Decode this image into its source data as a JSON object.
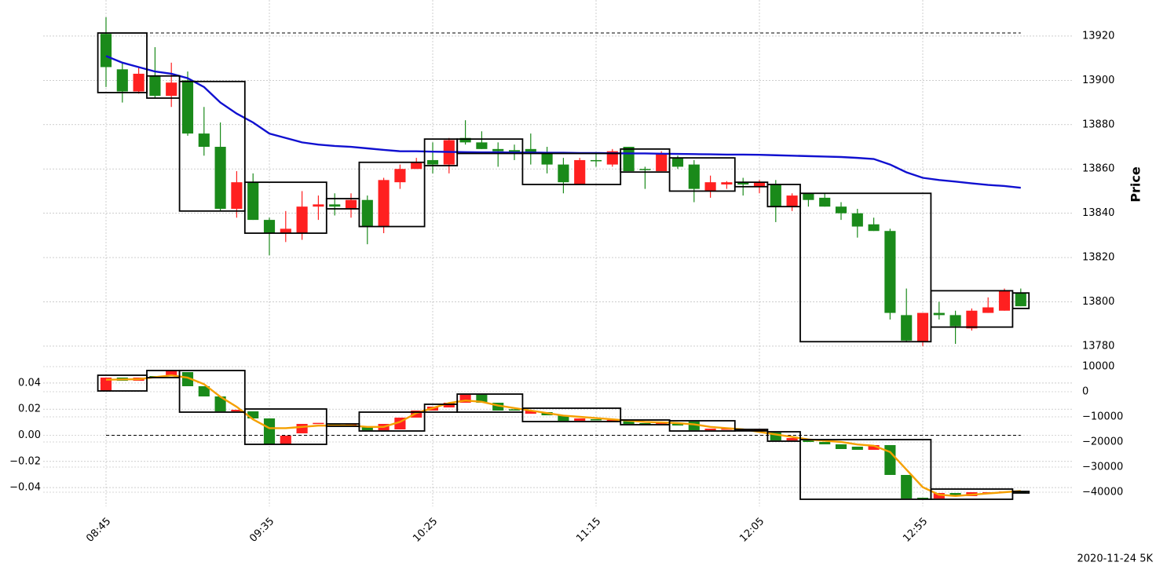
{
  "chart_data": [
    {
      "type": "candlestick",
      "ylabel": "Price",
      "categories": [
        "08:45",
        null,
        null,
        null,
        null,
        null,
        null,
        null,
        null,
        null,
        "09:35",
        null,
        null,
        null,
        null,
        null,
        null,
        null,
        null,
        null,
        "10:25",
        null,
        null,
        null,
        null,
        null,
        null,
        null,
        null,
        null,
        "11:15",
        null,
        null,
        null,
        null,
        null,
        null,
        null,
        null,
        null,
        "12:05",
        null,
        null,
        null,
        null,
        null,
        null,
        null,
        null,
        null,
        "12:55",
        null,
        null,
        null,
        null,
        null,
        null
      ],
      "open": [
        13921,
        13905,
        13895,
        13902,
        13893,
        13900,
        13876,
        13870,
        13842,
        13854,
        13837,
        13831,
        13831,
        13843,
        13844,
        13842,
        13846,
        13834,
        13854,
        13860,
        13864,
        13862,
        13874,
        13872,
        13869,
        13868.5,
        13869,
        13867,
        13862,
        13853,
        13864,
        13862,
        13870,
        13860,
        13859,
        13865,
        13862,
        13850,
        13853,
        13854,
        13852,
        13853,
        13843,
        13849,
        13847,
        13843,
        13840,
        13835,
        13832,
        13794,
        13782,
        13795,
        13794,
        13788,
        13795,
        13796,
        13804
      ],
      "high": [
        13928.5,
        13908,
        13906,
        13915,
        13908,
        13904,
        13888,
        13881,
        13859,
        13858,
        13838,
        13841,
        13850,
        13848,
        13849,
        13849,
        13848,
        13856,
        13862,
        13865,
        13872,
        13874,
        13882,
        13877,
        13872,
        13871,
        13876,
        13870,
        13865,
        13865,
        13867,
        13869,
        13870,
        13861,
        13868,
        13866,
        13864,
        13857,
        13854.5,
        13856,
        13855,
        13855,
        13849,
        13849,
        13849,
        13845,
        13842,
        13838,
        13833,
        13806,
        13795,
        13800,
        13796,
        13797,
        13802,
        13806,
        13806
      ],
      "low": [
        13897,
        13890,
        13894,
        13892,
        13888,
        13875,
        13866,
        13841,
        13838,
        13837,
        13821,
        13827,
        13828,
        13837,
        13839,
        13838,
        13826,
        13831,
        13851,
        13860,
        13858,
        13858,
        13871,
        13869,
        13861,
        13864,
        13862,
        13858,
        13849,
        13853,
        13861,
        13861,
        13859,
        13851,
        13859,
        13860,
        13845,
        13847,
        13851,
        13848,
        13849,
        13836,
        13841,
        13843,
        13843,
        13837,
        13829,
        13832,
        13792,
        13782,
        13780,
        13792,
        13781,
        13787,
        13795,
        13796,
        13798
      ],
      "close": [
        13906,
        13895,
        13903,
        13893,
        13899,
        13876,
        13870,
        13842,
        13854,
        13837,
        13831,
        13833,
        13843,
        13844,
        13843,
        13846,
        13834,
        13855,
        13860,
        13863,
        13862,
        13873,
        13872,
        13869,
        13868,
        13867,
        13867,
        13862,
        13854,
        13864,
        13863.5,
        13868,
        13859,
        13859.5,
        13867,
        13861,
        13851,
        13854,
        13854,
        13853,
        13854,
        13843,
        13848,
        13846,
        13843,
        13840,
        13834,
        13832,
        13795,
        13782.5,
        13795,
        13794,
        13789,
        13796,
        13797.5,
        13805,
        13798
      ],
      "up_color": "#ff2020",
      "down_color": "#1a8a1a",
      "ma": {
        "color": "#1010d0",
        "values": [
          13911,
          13908,
          13906,
          13904,
          13903,
          13901,
          13897,
          13890,
          13885,
          13881,
          13876,
          13874,
          13872,
          13871,
          13870.4,
          13870,
          13869.3,
          13868.6,
          13868,
          13868,
          13867.8,
          13867.7,
          13867.6,
          13867.5,
          13867.5,
          13867.4,
          13867.4,
          13867.3,
          13867.3,
          13867.2,
          13867.2,
          13867.1,
          13867,
          13867,
          13866.9,
          13866.8,
          13866.7,
          13866.6,
          13866.5,
          13866.5,
          13866.4,
          13866.2,
          13866,
          13865.8,
          13865.6,
          13865.4,
          13865,
          13864.5,
          13862,
          13858.5,
          13856,
          13855,
          13854.3,
          13853.5,
          13852.8,
          13852.3,
          13851.5
        ]
      },
      "boxes": [
        {
          "start": 0,
          "end": 2,
          "high": 13921.4,
          "low": 13894.5
        },
        {
          "start": 3,
          "end": 4,
          "high": 13902,
          "low": 13892
        },
        {
          "start": 5,
          "end": 8,
          "high": 13899.5,
          "low": 13841
        },
        {
          "start": 9,
          "end": 13,
          "high": 13854,
          "low": 13831
        },
        {
          "start": 14,
          "end": 15,
          "high": 13846.6,
          "low": 13842
        },
        {
          "start": 16,
          "end": 19,
          "high": 13863,
          "low": 13834
        },
        {
          "start": 20,
          "end": 21,
          "high": 13873.5,
          "low": 13861.5
        },
        {
          "start": 22,
          "end": 25,
          "high": 13873.5,
          "low": 13867
        },
        {
          "start": 26,
          "end": 31,
          "high": 13867,
          "low": 13853
        },
        {
          "start": 32,
          "end": 34,
          "high": 13869,
          "low": 13858.6
        },
        {
          "start": 35,
          "end": 38,
          "high": 13865,
          "low": 13850
        },
        {
          "start": 39,
          "end": 40,
          "high": 13854,
          "low": 13852
        },
        {
          "start": 41,
          "end": 42,
          "high": 13853,
          "low": 13843
        },
        {
          "start": 43,
          "end": 50,
          "high": 13849,
          "low": 13782
        },
        {
          "start": 51,
          "end": 55,
          "high": 13805,
          "low": 13788.6
        },
        {
          "start": 56,
          "end": 56,
          "high": 13804,
          "low": 13797
        }
      ],
      "reference_line": 13921.4,
      "ylim": [
        13775,
        13936.3
      ],
      "yticks": [
        13780,
        13800,
        13820,
        13840,
        13860,
        13880,
        13900,
        13920
      ],
      "grid": true
    },
    {
      "type": "candlestick",
      "open": [
        312,
        5625,
        4375,
        6250,
        6560,
        7810,
        2190,
        -1875,
        -7810,
        -7810,
        -10625,
        -20940,
        -16560,
        -12500,
        -12810,
        -13440,
        -13750,
        -15310,
        -15000,
        -10310,
        -7500,
        -6250,
        -4375,
        -1250,
        -4375,
        -7000,
        -8750,
        -8125,
        -9375,
        -11560,
        -10940,
        -11560,
        -11250,
        -12500,
        -12810,
        -12810,
        -11875,
        -15310,
        -15000,
        -15000,
        -15600,
        -16250,
        -19375,
        -19375,
        -20000,
        -20940,
        -21875,
        -23125,
        -21250,
        -33125,
        -42190,
        -42500,
        -40310,
        -41560,
        -40310,
        -40000,
        -39690
      ],
      "close": [
        5625,
        4375,
        5625,
        5625,
        8440,
        2190,
        -1875,
        -7810,
        -7190,
        -10625,
        -20940,
        -17500,
        -12810,
        -12400,
        -13750,
        -12810,
        -15310,
        -12810,
        -10310,
        -7500,
        -5940,
        -4375,
        -1250,
        -4375,
        -7500,
        -7500,
        -7500,
        -9375,
        -11560,
        -10625,
        -11250,
        -11250,
        -12810,
        -12810,
        -12190,
        -13440,
        -15310,
        -14690,
        -14700,
        -15300,
        -15000,
        -19375,
        -18440,
        -20000,
        -20940,
        -22810,
        -23125,
        -21250,
        -33125,
        -42500,
        -42500,
        -40310,
        -41560,
        -40000,
        -40000,
        -39690,
        -40310
      ],
      "up_color": "#ff2020",
      "down_color": "#1a8a1a",
      "line": {
        "color": "#f5a000",
        "values": [
          4800,
          4900,
          5000,
          5800,
          6500,
          5600,
          3000,
          -2000,
          -6000,
          -11000,
          -14500,
          -14500,
          -14000,
          -13500,
          -13500,
          -13500,
          -14000,
          -14000,
          -12000,
          -8500,
          -6500,
          -4500,
          -3500,
          -4000,
          -5500,
          -6500,
          -7500,
          -8500,
          -9500,
          -10000,
          -10500,
          -11000,
          -11500,
          -12000,
          -12200,
          -12500,
          -13000,
          -14000,
          -14500,
          -15000,
          -16000,
          -17000,
          -18000,
          -19000,
          -19500,
          -20000,
          -21000,
          -21500,
          -24000,
          -31000,
          -38000,
          -41000,
          -41500,
          -41000,
          -40500,
          -40000,
          -39500
        ]
      },
      "boxes": [
        {
          "start": 0,
          "end": 2,
          "high": 6560,
          "low": 310
        },
        {
          "start": 3,
          "end": 4,
          "high": 8440,
          "low": 5625
        },
        {
          "start": 5,
          "end": 8,
          "high": 8440,
          "low": -8125
        },
        {
          "start": 9,
          "end": 13,
          "high": -6875,
          "low": -20940
        },
        {
          "start": 14,
          "end": 15,
          "high": -12810,
          "low": -13750
        },
        {
          "start": 16,
          "end": 19,
          "high": -8125,
          "low": -15625
        },
        {
          "start": 20,
          "end": 21,
          "high": -5000,
          "low": -8125
        },
        {
          "start": 22,
          "end": 25,
          "high": -940,
          "low": -8125
        },
        {
          "start": 26,
          "end": 31,
          "high": -6560,
          "low": -11875
        },
        {
          "start": 32,
          "end": 34,
          "high": -11250,
          "low": -13125
        },
        {
          "start": 35,
          "end": 38,
          "high": -11560,
          "low": -15625
        },
        {
          "start": 39,
          "end": 40,
          "high": -15000,
          "low": -15600
        },
        {
          "start": 41,
          "end": 42,
          "high": -15940,
          "low": -19690
        },
        {
          "start": 43,
          "end": 50,
          "high": -19060,
          "low": -42810
        },
        {
          "start": 51,
          "end": 55,
          "high": -38750,
          "low": -42810
        },
        {
          "start": 56,
          "end": 56,
          "high": -39690,
          "low": -40310
        }
      ],
      "reference_line": 0,
      "ylim": [
        -0.0544,
        0.058
      ],
      "yticks": [
        {
          "value": -0.04,
          "label": "−0.04"
        },
        {
          "value": -0.02,
          "label": "−0.02"
        },
        {
          "value": 0,
          "label": "0.00"
        },
        0.02,
        0.04
      ],
      "y2lim": [
        -45625,
        12812
      ],
      "y2ticks": [
        {
          "value": -40000,
          "label": "−40000"
        },
        {
          "value": -30000,
          "label": "−30000"
        },
        {
          "value": -20000,
          "label": "−20000"
        },
        {
          "value": -10000,
          "label": "−10000"
        },
        0,
        10000
      ],
      "grid": true
    }
  ],
  "caption": "2020-11-24 5K"
}
